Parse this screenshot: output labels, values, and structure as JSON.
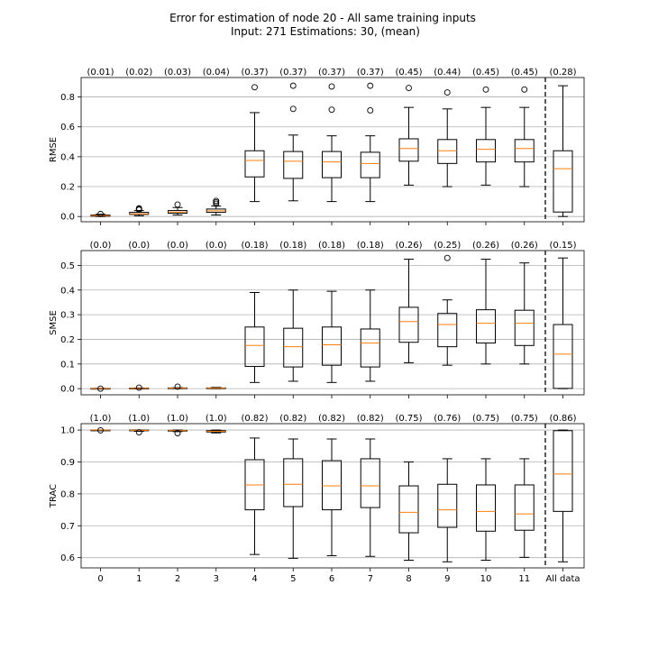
{
  "chart_data": {
    "type": "boxplot",
    "title": "Error for estimation of node 20 - All same training inputs",
    "subtitle": "Input: 271   Estimations: 30,  (mean)",
    "categories": [
      "0",
      "1",
      "2",
      "3",
      "4",
      "5",
      "6",
      "7",
      "8",
      "9",
      "10",
      "11",
      "All data"
    ],
    "xlabel": "",
    "grid": "horizontal",
    "colors": {
      "box": "#000000",
      "median": "#ff7f0e",
      "grid": "#b0b0b0",
      "separator": "#000000"
    },
    "panels": [
      {
        "ylabel": "RMSE",
        "ylim": [
          -0.035,
          0.93
        ],
        "yticks": [
          0.0,
          0.2,
          0.4,
          0.6,
          0.8
        ],
        "ytick_labels": [
          "0.0",
          "0.2",
          "0.4",
          "0.6",
          "0.8"
        ],
        "mean_labels": [
          "(0.01)",
          "(0.02)",
          "(0.03)",
          "(0.04)",
          "(0.37)",
          "(0.37)",
          "(0.37)",
          "(0.37)",
          "(0.45)",
          "(0.44)",
          "(0.45)",
          "(0.45)",
          "(0.28)"
        ],
        "boxes": [
          {
            "whislo": 0.0,
            "q1": 0.002,
            "med": 0.006,
            "q3": 0.01,
            "whishi": 0.015,
            "fliers": [
              0.017
            ]
          },
          {
            "whislo": 0.005,
            "q1": 0.014,
            "med": 0.018,
            "q3": 0.028,
            "whishi": 0.04,
            "fliers": [
              0.045,
              0.05,
              0.055
            ]
          },
          {
            "whislo": 0.01,
            "q1": 0.022,
            "med": 0.03,
            "q3": 0.04,
            "whishi": 0.06,
            "fliers": [
              0.08
            ]
          },
          {
            "whislo": 0.01,
            "q1": 0.028,
            "med": 0.038,
            "q3": 0.05,
            "whishi": 0.07,
            "fliers": [
              0.085,
              0.095,
              0.105
            ]
          },
          {
            "whislo": 0.1,
            "q1": 0.265,
            "med": 0.375,
            "q3": 0.44,
            "whishi": 0.695,
            "fliers": [
              0.865
            ]
          },
          {
            "whislo": 0.105,
            "q1": 0.255,
            "med": 0.37,
            "q3": 0.435,
            "whishi": 0.545,
            "fliers": [
              0.72,
              0.875
            ]
          },
          {
            "whislo": 0.1,
            "q1": 0.26,
            "med": 0.365,
            "q3": 0.435,
            "whishi": 0.54,
            "fliers": [
              0.715,
              0.87
            ]
          },
          {
            "whislo": 0.1,
            "q1": 0.26,
            "med": 0.355,
            "q3": 0.43,
            "whishi": 0.54,
            "fliers": [
              0.71,
              0.875
            ]
          },
          {
            "whislo": 0.21,
            "q1": 0.37,
            "med": 0.455,
            "q3": 0.52,
            "whishi": 0.73,
            "fliers": [
              0.86
            ]
          },
          {
            "whislo": 0.2,
            "q1": 0.355,
            "med": 0.44,
            "q3": 0.515,
            "whishi": 0.72,
            "fliers": [
              0.83
            ]
          },
          {
            "whislo": 0.21,
            "q1": 0.365,
            "med": 0.45,
            "q3": 0.515,
            "whishi": 0.73,
            "fliers": [
              0.85
            ]
          },
          {
            "whislo": 0.2,
            "q1": 0.365,
            "med": 0.455,
            "q3": 0.515,
            "whishi": 0.73,
            "fliers": [
              0.85
            ]
          },
          {
            "whislo": 0.0,
            "q1": 0.03,
            "med": 0.32,
            "q3": 0.44,
            "whishi": 0.875,
            "fliers": []
          }
        ]
      },
      {
        "ylabel": "SMSE",
        "ylim": [
          -0.025,
          0.56
        ],
        "yticks": [
          0.0,
          0.1,
          0.2,
          0.3,
          0.4,
          0.5
        ],
        "ytick_labels": [
          "0.0",
          "0.1",
          "0.2",
          "0.3",
          "0.4",
          "0.5"
        ],
        "mean_labels": [
          "(0.0)",
          "(0.0)",
          "(0.0)",
          "(0.0)",
          "(0.18)",
          "(0.18)",
          "(0.18)",
          "(0.18)",
          "(0.26)",
          "(0.25)",
          "(0.26)",
          "(0.26)",
          "(0.15)"
        ],
        "boxes": [
          {
            "whislo": 0.0,
            "q1": 0.0,
            "med": 0.0,
            "q3": 0.001,
            "whishi": 0.001,
            "fliers": [
              0.0
            ]
          },
          {
            "whislo": 0.0,
            "q1": 0.001,
            "med": 0.001,
            "q3": 0.002,
            "whishi": 0.003,
            "fliers": [
              0.004
            ]
          },
          {
            "whislo": 0.0,
            "q1": 0.001,
            "med": 0.002,
            "q3": 0.003,
            "whishi": 0.004,
            "fliers": [
              0.008
            ]
          },
          {
            "whislo": 0.0,
            "q1": 0.001,
            "med": 0.002,
            "q3": 0.003,
            "whishi": 0.005,
            "fliers": []
          },
          {
            "whislo": 0.025,
            "q1": 0.09,
            "med": 0.175,
            "q3": 0.25,
            "whishi": 0.39,
            "fliers": []
          },
          {
            "whislo": 0.03,
            "q1": 0.088,
            "med": 0.17,
            "q3": 0.245,
            "whishi": 0.4,
            "fliers": []
          },
          {
            "whislo": 0.025,
            "q1": 0.095,
            "med": 0.178,
            "q3": 0.25,
            "whishi": 0.395,
            "fliers": []
          },
          {
            "whislo": 0.03,
            "q1": 0.088,
            "med": 0.185,
            "q3": 0.242,
            "whishi": 0.4,
            "fliers": []
          },
          {
            "whislo": 0.105,
            "q1": 0.188,
            "med": 0.272,
            "q3": 0.33,
            "whishi": 0.525,
            "fliers": []
          },
          {
            "whislo": 0.095,
            "q1": 0.17,
            "med": 0.26,
            "q3": 0.305,
            "whishi": 0.36,
            "fliers": [
              0.53
            ]
          },
          {
            "whislo": 0.1,
            "q1": 0.185,
            "med": 0.265,
            "q3": 0.32,
            "whishi": 0.525,
            "fliers": []
          },
          {
            "whislo": 0.1,
            "q1": 0.175,
            "med": 0.265,
            "q3": 0.318,
            "whishi": 0.51,
            "fliers": []
          },
          {
            "whislo": 0.0,
            "q1": 0.001,
            "med": 0.14,
            "q3": 0.26,
            "whishi": 0.53,
            "fliers": []
          }
        ]
      },
      {
        "ylabel": "TRAC",
        "ylim": [
          0.568,
          1.02
        ],
        "yticks": [
          0.6,
          0.7,
          0.8,
          0.9,
          1.0
        ],
        "ytick_labels": [
          "0.6",
          "0.7",
          "0.8",
          "0.9",
          "1.0"
        ],
        "mean_labels": [
          "(1.0)",
          "(1.0)",
          "(1.0)",
          "(1.0)",
          "(0.82)",
          "(0.82)",
          "(0.82)",
          "(0.82)",
          "(0.75)",
          "(0.76)",
          "(0.75)",
          "(0.75)",
          "(0.86)"
        ],
        "boxes": [
          {
            "whislo": 0.999,
            "q1": 1.0,
            "med": 1.0,
            "q3": 1.0,
            "whishi": 1.0,
            "fliers": [
              0.999
            ]
          },
          {
            "whislo": 0.996,
            "q1": 0.998,
            "med": 0.999,
            "q3": 1.0,
            "whishi": 1.0,
            "fliers": [
              0.993
            ]
          },
          {
            "whislo": 0.995,
            "q1": 0.997,
            "med": 0.998,
            "q3": 0.999,
            "whishi": 1.0,
            "fliers": [
              0.99
            ]
          },
          {
            "whislo": 0.991,
            "q1": 0.994,
            "med": 0.996,
            "q3": 0.998,
            "whishi": 1.0,
            "fliers": []
          },
          {
            "whislo": 0.61,
            "q1": 0.75,
            "med": 0.828,
            "q3": 0.907,
            "whishi": 0.975,
            "fliers": []
          },
          {
            "whislo": 0.598,
            "q1": 0.76,
            "med": 0.83,
            "q3": 0.91,
            "whishi": 0.972,
            "fliers": []
          },
          {
            "whislo": 0.606,
            "q1": 0.75,
            "med": 0.825,
            "q3": 0.904,
            "whishi": 0.972,
            "fliers": []
          },
          {
            "whislo": 0.604,
            "q1": 0.757,
            "med": 0.825,
            "q3": 0.91,
            "whishi": 0.972,
            "fliers": []
          },
          {
            "whislo": 0.592,
            "q1": 0.678,
            "med": 0.742,
            "q3": 0.825,
            "whishi": 0.9,
            "fliers": []
          },
          {
            "whislo": 0.587,
            "q1": 0.695,
            "med": 0.75,
            "q3": 0.83,
            "whishi": 0.91,
            "fliers": []
          },
          {
            "whislo": 0.592,
            "q1": 0.683,
            "med": 0.745,
            "q3": 0.828,
            "whishi": 0.91,
            "fliers": []
          },
          {
            "whislo": 0.601,
            "q1": 0.686,
            "med": 0.737,
            "q3": 0.828,
            "whishi": 0.91,
            "fliers": []
          },
          {
            "whislo": 0.587,
            "q1": 0.745,
            "med": 0.862,
            "q3": 0.998,
            "whishi": 1.0,
            "fliers": []
          }
        ]
      }
    ]
  }
}
